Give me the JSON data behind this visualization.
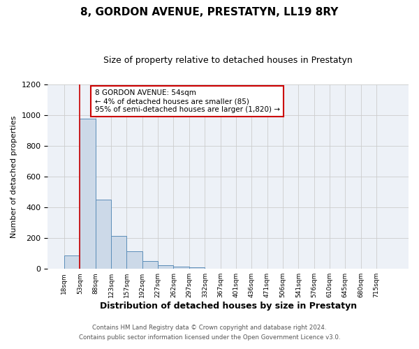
{
  "title": "8, GORDON AVENUE, PRESTATYN, LL19 8RY",
  "subtitle": "Size of property relative to detached houses in Prestatyn",
  "xlabel": "Distribution of detached houses by size in Prestatyn",
  "ylabel": "Number of detached properties",
  "bar_color": "#ccd9e8",
  "bar_edge_color": "#5b8db8",
  "bin_labels": [
    "18sqm",
    "53sqm",
    "88sqm",
    "123sqm",
    "157sqm",
    "192sqm",
    "227sqm",
    "262sqm",
    "297sqm",
    "332sqm",
    "367sqm",
    "401sqm",
    "436sqm",
    "471sqm",
    "506sqm",
    "541sqm",
    "576sqm",
    "610sqm",
    "645sqm",
    "680sqm",
    "715sqm"
  ],
  "bar_heights": [
    85,
    975,
    450,
    215,
    115,
    50,
    25,
    13,
    10,
    0,
    0,
    0,
    0,
    0,
    0,
    0,
    0,
    0,
    0,
    0,
    0
  ],
  "bin_edges": [
    18,
    53,
    88,
    123,
    157,
    192,
    227,
    262,
    297,
    332,
    367,
    401,
    436,
    471,
    506,
    541,
    576,
    610,
    645,
    680,
    715
  ],
  "red_line_x": 53,
  "ylim": [
    0,
    1200
  ],
  "yticks": [
    0,
    200,
    400,
    600,
    800,
    1000,
    1200
  ],
  "annotation_text": "8 GORDON AVENUE: 54sqm\n← 4% of detached houses are smaller (85)\n95% of semi-detached houses are larger (1,820) →",
  "annotation_box_color": "#ffffff",
  "annotation_border_color": "#cc0000",
  "footer_line1": "Contains HM Land Registry data © Crown copyright and database right 2024.",
  "footer_line2": "Contains public sector information licensed under the Open Government Licence v3.0.",
  "background_color": "#edf1f7"
}
